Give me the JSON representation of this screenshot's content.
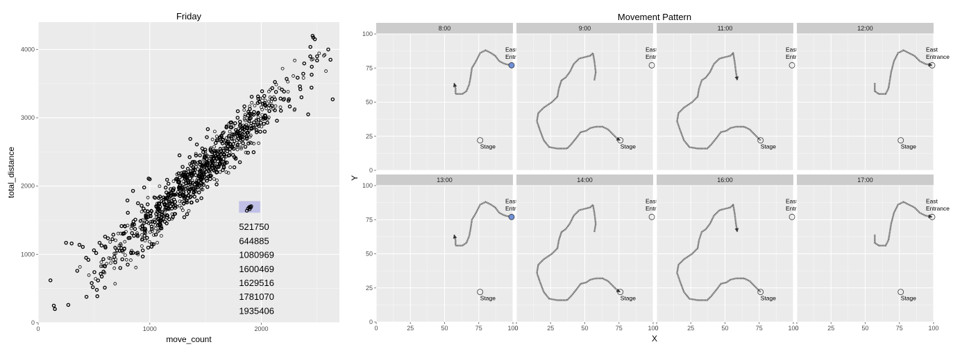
{
  "chart_data": [
    {
      "type": "scatter",
      "title": "Friday",
      "xlabel": "move_count",
      "ylabel": "total_distance",
      "xlim": [
        0,
        2700
      ],
      "ylim": [
        0,
        4400
      ],
      "xticks": [
        0,
        1000,
        2000
      ],
      "yticks": [
        0,
        1000,
        2000,
        3000,
        4000
      ],
      "grid": true,
      "point_style": "hollow-circle",
      "trend": {
        "slope": 1.55,
        "intercept": -70,
        "density_peak_x": 1450,
        "density_spread_x": 420,
        "x_range": [
          350,
          2650
        ],
        "noise_sd": 170,
        "count": 900
      },
      "outliers": [
        {
          "x": 110,
          "y": 620
        },
        {
          "x": 140,
          "y": 250
        },
        {
          "x": 150,
          "y": 200
        },
        {
          "x": 270,
          "y": 260
        },
        {
          "x": 250,
          "y": 1170
        },
        {
          "x": 300,
          "y": 1160
        },
        {
          "x": 370,
          "y": 1140
        },
        {
          "x": 400,
          "y": 1110
        },
        {
          "x": 430,
          "y": 950
        },
        {
          "x": 450,
          "y": 920
        },
        {
          "x": 500,
          "y": 1060
        },
        {
          "x": 520,
          "y": 1020
        },
        {
          "x": 550,
          "y": 1170
        },
        {
          "x": 600,
          "y": 1260
        },
        {
          "x": 490,
          "y": 520
        },
        {
          "x": 480,
          "y": 580
        },
        {
          "x": 760,
          "y": 1300
        },
        {
          "x": 800,
          "y": 1790
        },
        {
          "x": 850,
          "y": 1930
        },
        {
          "x": 950,
          "y": 1980
        },
        {
          "x": 990,
          "y": 2110
        },
        {
          "x": 1000,
          "y": 2100
        },
        {
          "x": 2360,
          "y": 3300
        },
        {
          "x": 2420,
          "y": 3050
        },
        {
          "x": 2460,
          "y": 4200
        },
        {
          "x": 2480,
          "y": 4150
        },
        {
          "x": 2500,
          "y": 3900
        },
        {
          "x": 2600,
          "y": 4000
        },
        {
          "x": 2620,
          "y": 3850
        },
        {
          "x": 2640,
          "y": 3270
        }
      ],
      "selection": {
        "points": [
          {
            "x": 1870,
            "y": 1640
          },
          {
            "x": 1880,
            "y": 1670
          },
          {
            "x": 1890,
            "y": 1690
          },
          {
            "x": 1900,
            "y": 1700
          },
          {
            "x": 1910,
            "y": 1705
          },
          {
            "x": 1895,
            "y": 1660
          },
          {
            "x": 1905,
            "y": 1685
          }
        ],
        "box": {
          "x": [
            1800,
            1990
          ],
          "y": [
            1610,
            1780
          ]
        },
        "color": "#b3b3e6",
        "ids": [
          "521750",
          "644885",
          "1080969",
          "1600469",
          "1629516",
          "1781070",
          "1935406"
        ]
      }
    },
    {
      "type": "line",
      "title": "Movement Pattern",
      "xlabel": "X",
      "ylabel": "Y",
      "xlim": [
        0,
        100
      ],
      "ylim": [
        0,
        100
      ],
      "xticks": [
        0,
        25,
        50,
        75,
        100
      ],
      "yticks": [
        0,
        25,
        50,
        75,
        100
      ],
      "grid": true,
      "path_color": "#666666",
      "highlight_color": "#6f8fd8",
      "locations": [
        {
          "name": [
            "East",
            "Entrance"
          ],
          "x": 99,
          "y": 77,
          "label_pos": "above"
        },
        {
          "name": [
            "Stage"
          ],
          "x": 76,
          "y": 22,
          "label_pos": "below"
        }
      ],
      "paths": {
        "route_a": [
          [
            99,
            77
          ],
          [
            94,
            78
          ],
          [
            90,
            80
          ],
          [
            87,
            84
          ],
          [
            84,
            86
          ],
          [
            80,
            88
          ],
          [
            76,
            86
          ],
          [
            73,
            80
          ],
          [
            70,
            75
          ],
          [
            69,
            68
          ],
          [
            68,
            63
          ],
          [
            66,
            58
          ],
          [
            63,
            56
          ],
          [
            58,
            56
          ],
          [
            58,
            60
          ],
          [
            57,
            64
          ]
        ],
        "route_b": [
          [
            57,
            66
          ],
          [
            58,
            72
          ],
          [
            57,
            80
          ],
          [
            56,
            86
          ],
          [
            54,
            84
          ],
          [
            50,
            83
          ],
          [
            46,
            82
          ],
          [
            42,
            78
          ],
          [
            39,
            72
          ],
          [
            36,
            68
          ],
          [
            33,
            66
          ],
          [
            31,
            60
          ],
          [
            30,
            54
          ],
          [
            26,
            50
          ],
          [
            20,
            46
          ],
          [
            16,
            42
          ],
          [
            15,
            36
          ],
          [
            17,
            30
          ],
          [
            20,
            22
          ],
          [
            24,
            17
          ],
          [
            30,
            16
          ],
          [
            37,
            16
          ],
          [
            40,
            19
          ],
          [
            44,
            24
          ],
          [
            47,
            28
          ],
          [
            51,
            29
          ],
          [
            54,
            31
          ],
          [
            58,
            32
          ],
          [
            63,
            32
          ],
          [
            67,
            30
          ],
          [
            71,
            26
          ],
          [
            74,
            23
          ],
          [
            76,
            22
          ]
        ],
        "route_c": [
          [
            76,
            22
          ],
          [
            72,
            26
          ],
          [
            68,
            30
          ],
          [
            64,
            32
          ],
          [
            58,
            32
          ],
          [
            54,
            31
          ],
          [
            51,
            29
          ],
          [
            47,
            28
          ],
          [
            44,
            24
          ],
          [
            40,
            19
          ],
          [
            37,
            16
          ],
          [
            30,
            16
          ],
          [
            24,
            17
          ],
          [
            20,
            22
          ],
          [
            17,
            30
          ],
          [
            15,
            36
          ],
          [
            16,
            42
          ],
          [
            20,
            46
          ],
          [
            26,
            50
          ],
          [
            30,
            54
          ],
          [
            31,
            60
          ],
          [
            33,
            66
          ],
          [
            36,
            68
          ],
          [
            39,
            72
          ],
          [
            42,
            78
          ],
          [
            46,
            82
          ],
          [
            50,
            83
          ],
          [
            54,
            84
          ],
          [
            56,
            86
          ],
          [
            57,
            80
          ],
          [
            58,
            72
          ],
          [
            59,
            66
          ]
        ],
        "route_d": [
          [
            57,
            64
          ],
          [
            57,
            58
          ],
          [
            60,
            56
          ],
          [
            65,
            56
          ],
          [
            67,
            60
          ],
          [
            68,
            66
          ],
          [
            69,
            72
          ],
          [
            71,
            80
          ],
          [
            74,
            86
          ],
          [
            78,
            88
          ],
          [
            82,
            86
          ],
          [
            86,
            84
          ],
          [
            90,
            80
          ],
          [
            94,
            78
          ],
          [
            99,
            77
          ]
        ]
      },
      "panels": [
        {
          "label": "8:00",
          "route": "route_a",
          "highlight": "East Entrance",
          "arrow": "end"
        },
        {
          "label": "9:00",
          "route": "route_b",
          "highlight": "",
          "arrow": "end"
        },
        {
          "label": "11:00",
          "route": "route_c",
          "highlight": "",
          "arrow": "end"
        },
        {
          "label": "12:00",
          "route": "route_d",
          "highlight": "",
          "arrow": "end"
        },
        {
          "label": "13:00",
          "route": "route_a",
          "highlight": "East Entrance",
          "arrow": "end"
        },
        {
          "label": "14:00",
          "route": "route_b",
          "highlight": "",
          "arrow": "end"
        },
        {
          "label": "16:00",
          "route": "route_c",
          "highlight": "",
          "arrow": "end"
        },
        {
          "label": "17:00",
          "route": "route_d",
          "highlight": "",
          "arrow": "end"
        }
      ]
    }
  ]
}
